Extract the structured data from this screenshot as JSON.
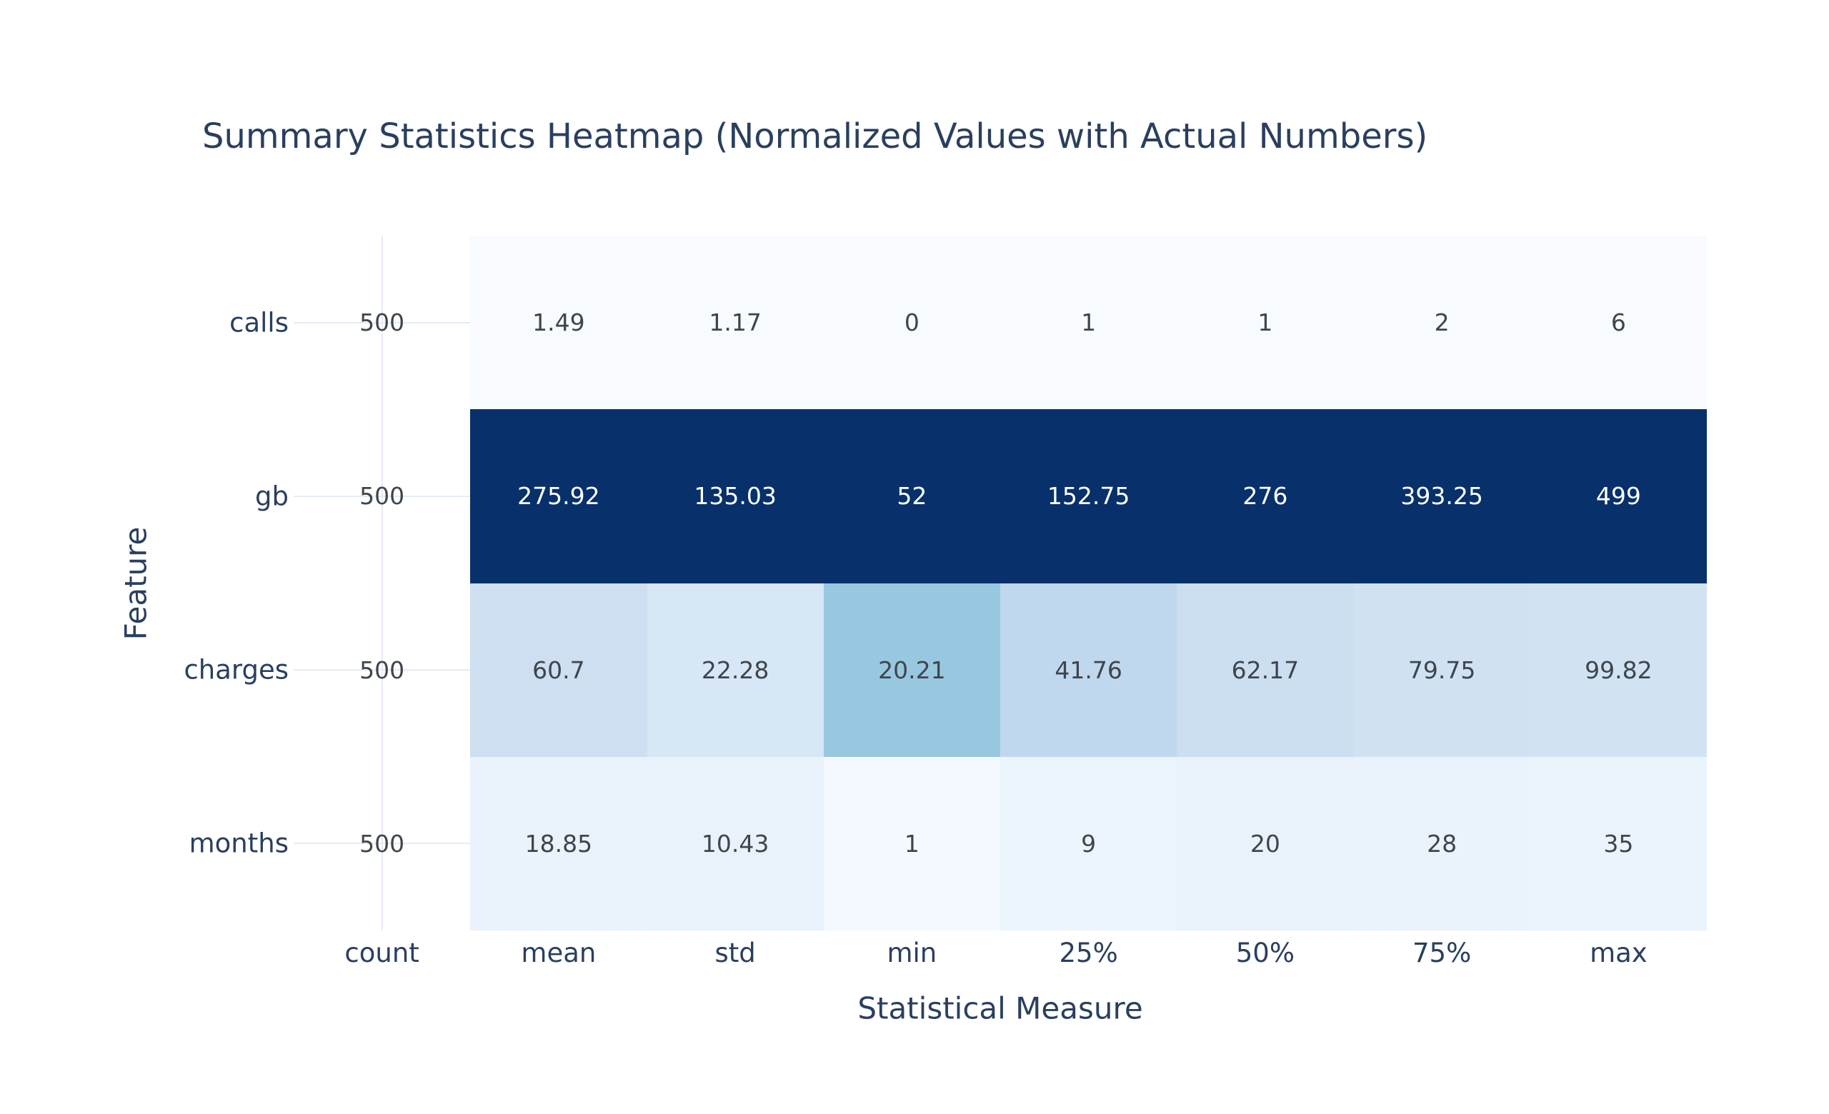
{
  "title": "Summary Statistics Heatmap (Normalized Values with Actual Numbers)",
  "chart_data": {
    "type": "heatmap",
    "title": "Summary Statistics Heatmap (Normalized Values with Actual Numbers)",
    "xlabel": "Statistical Measure",
    "ylabel": "Feature",
    "columns": [
      "count",
      "mean",
      "std",
      "min",
      "25%",
      "50%",
      "75%",
      "max"
    ],
    "rows": [
      "calls",
      "gb",
      "charges",
      "months"
    ],
    "values": [
      [
        500,
        1.49,
        1.17,
        0,
        1,
        1,
        2,
        6
      ],
      [
        500,
        275.92,
        135.03,
        52,
        152.75,
        276,
        393.25,
        499
      ],
      [
        500,
        60.7,
        22.28,
        20.21,
        41.76,
        62.17,
        79.75,
        99.82
      ],
      [
        500,
        18.85,
        10.43,
        1,
        9,
        20,
        28,
        35
      ]
    ],
    "labels": [
      [
        "500",
        "1.49",
        "1.17",
        "0",
        "1",
        "1",
        "2",
        "6"
      ],
      [
        "500",
        "275.92",
        "135.03",
        "52",
        "152.75",
        "276",
        "393.25",
        "499"
      ],
      [
        "500",
        "60.7",
        "22.28",
        "20.21",
        "41.76",
        "62.17",
        "79.75",
        "99.82"
      ],
      [
        "500",
        "18.85",
        "10.43",
        "1",
        "9",
        "20",
        "28",
        "35"
      ]
    ],
    "normalization": "per-column (min-max across features); constant columns rendered blank",
    "legend_position": "none",
    "grid": true,
    "colorscale_name": "Blues",
    "colorscale": [
      [
        0,
        "247,251,255"
      ],
      [
        0.125,
        "222,235,247"
      ],
      [
        0.25,
        "198,219,239"
      ],
      [
        0.375,
        "158,202,225"
      ],
      [
        0.5,
        "107,174,214"
      ],
      [
        0.625,
        "66,146,198"
      ],
      [
        0.75,
        "33,113,181"
      ],
      [
        0.875,
        "8,81,156"
      ],
      [
        1,
        "8,48,107"
      ]
    ],
    "colors": {
      "title_text": "#2a3f5f",
      "axis_text": "#2a3f5f",
      "cell_text_dark": "#3f454c",
      "cell_text_light": "#ffffff",
      "gridline": "#e5ecf6",
      "background": "#ffffff"
    }
  }
}
